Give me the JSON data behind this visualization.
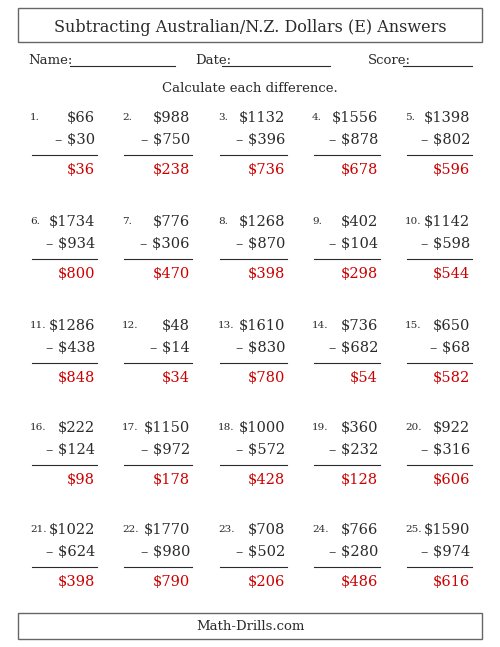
{
  "title": "Subtracting Australian/N.Z. Dollars (E) Answers",
  "footer": "Math-Drills.com",
  "instruction": "Calculate each difference.",
  "name_label": "Name:",
  "date_label": "Date:",
  "score_label": "Score:",
  "problems": [
    {
      "num": 1,
      "top": "$66",
      "sub": "– $30",
      "ans": "$36"
    },
    {
      "num": 2,
      "top": "$988",
      "sub": "– $750",
      "ans": "$238"
    },
    {
      "num": 3,
      "top": "$1132",
      "sub": "– $396",
      "ans": "$736"
    },
    {
      "num": 4,
      "top": "$1556",
      "sub": "– $878",
      "ans": "$678"
    },
    {
      "num": 5,
      "top": "$1398",
      "sub": "– $802",
      "ans": "$596"
    },
    {
      "num": 6,
      "top": "$1734",
      "sub": "– $934",
      "ans": "$800"
    },
    {
      "num": 7,
      "top": "$776",
      "sub": "– $306",
      "ans": "$470"
    },
    {
      "num": 8,
      "top": "$1268",
      "sub": "– $870",
      "ans": "$398"
    },
    {
      "num": 9,
      "top": "$402",
      "sub": "– $104",
      "ans": "$298"
    },
    {
      "num": 10,
      "top": "$1142",
      "sub": "– $598",
      "ans": "$544"
    },
    {
      "num": 11,
      "top": "$1286",
      "sub": "– $438",
      "ans": "$848"
    },
    {
      "num": 12,
      "top": "$48",
      "sub": "– $14",
      "ans": "$34"
    },
    {
      "num": 13,
      "top": "$1610",
      "sub": "– $830",
      "ans": "$780"
    },
    {
      "num": 14,
      "top": "$736",
      "sub": "– $682",
      "ans": "$54"
    },
    {
      "num": 15,
      "top": "$650",
      "sub": "– $68",
      "ans": "$582"
    },
    {
      "num": 16,
      "top": "$222",
      "sub": "– $124",
      "ans": "$98"
    },
    {
      "num": 17,
      "top": "$1150",
      "sub": "– $972",
      "ans": "$178"
    },
    {
      "num": 18,
      "top": "$1000",
      "sub": "– $572",
      "ans": "$428"
    },
    {
      "num": 19,
      "top": "$360",
      "sub": "– $232",
      "ans": "$128"
    },
    {
      "num": 20,
      "top": "$922",
      "sub": "– $316",
      "ans": "$606"
    },
    {
      "num": 21,
      "top": "$1022",
      "sub": "– $624",
      "ans": "$398"
    },
    {
      "num": 22,
      "top": "$1770",
      "sub": "– $980",
      "ans": "$790"
    },
    {
      "num": 23,
      "top": "$708",
      "sub": "– $502",
      "ans": "$206"
    },
    {
      "num": 24,
      "top": "$766",
      "sub": "– $280",
      "ans": "$486"
    },
    {
      "num": 25,
      "top": "$1590",
      "sub": "– $974",
      "ans": "$616"
    }
  ],
  "text_color": "#2b2b2b",
  "ans_color": "#cc0000",
  "bg_color": "#ffffff",
  "title_fontsize": 11.5,
  "label_fontsize": 9.5,
  "problem_fontsize": 10.5,
  "num_fontsize": 7.5
}
